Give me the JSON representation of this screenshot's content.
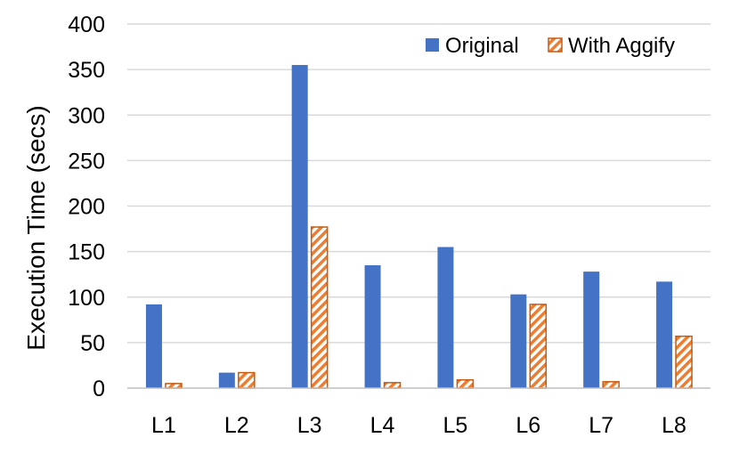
{
  "chart_data": {
    "type": "bar",
    "categories": [
      "L1",
      "L2",
      "L3",
      "L4",
      "L5",
      "L6",
      "L7",
      "L8"
    ],
    "series": [
      {
        "name": "Original",
        "color": "#4472c4",
        "pattern": "solid",
        "values": [
          92,
          17,
          355,
          135,
          155,
          103,
          128,
          117
        ]
      },
      {
        "name": "With Aggify",
        "color": "#ed7d31",
        "pattern": "diagonal-hatch",
        "edge_color": "#c55a11",
        "values": [
          5,
          17,
          177,
          6,
          9,
          92,
          7,
          57
        ]
      }
    ],
    "title": "",
    "xlabel": "",
    "ylabel": "Execution Time (secs)",
    "ylim": [
      0,
      400
    ],
    "yticks": [
      "0",
      "50",
      "100",
      "150",
      "200",
      "250",
      "300",
      "350",
      "400"
    ],
    "grid": true,
    "legend_position": "top-right"
  }
}
